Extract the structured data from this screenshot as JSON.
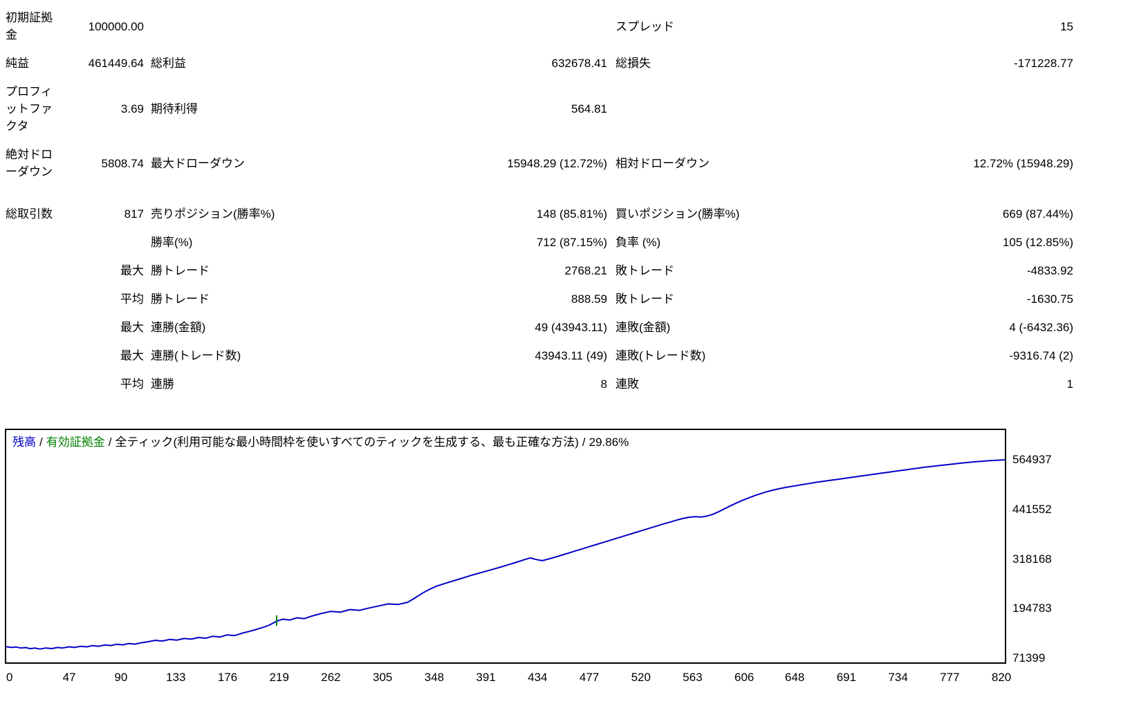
{
  "stats": {
    "rows": [
      {
        "c0": "初期証拠金",
        "c1": "100000.00",
        "c2": "",
        "c3": "",
        "c4": "スプレッド",
        "c5": "15"
      },
      {
        "c0": "純益",
        "c1": "461449.64",
        "c2": "総利益",
        "c3": "632678.41",
        "c4": "総損失",
        "c5": "-171228.77"
      },
      {
        "c0": "プロフィットファクタ",
        "c1": "3.69",
        "c2": "期待利得",
        "c3": "564.81",
        "c4": "",
        "c5": ""
      },
      {
        "c0": "絶対ドローダウン",
        "c1": "5808.74",
        "c2": "最大ドローダウン",
        "c3": "15948.29 (12.72%)",
        "c4": "相対ドローダウン",
        "c5": "12.72% (15948.29)"
      },
      {
        "c0": "総取引数",
        "c1": "817",
        "c2": "売りポジション(勝率%)",
        "c3": "148 (85.81%)",
        "c4": "買いポジション(勝率%)",
        "c5": "669 (87.44%)"
      },
      {
        "c0": "",
        "c1": "",
        "c2": "勝率(%)",
        "c3": "712 (87.15%)",
        "c4": "負率 (%)",
        "c5": "105 (12.85%)"
      },
      {
        "c0": "",
        "c1": "最大",
        "c2": "勝トレード",
        "c3": "2768.21",
        "c4": "敗トレード",
        "c5": "-4833.92"
      },
      {
        "c0": "",
        "c1": "平均",
        "c2": "勝トレード",
        "c3": "888.59",
        "c4": "敗トレード",
        "c5": "-1630.75"
      },
      {
        "c0": "",
        "c1": "最大",
        "c2": "連勝(金額)",
        "c3": "49 (43943.11)",
        "c4": "連敗(金額)",
        "c5": "4 (-6432.36)"
      },
      {
        "c0": "",
        "c1": "最大",
        "c2": "連勝(トレード数)",
        "c3": "43943.11 (49)",
        "c4": "連敗(トレード数)",
        "c5": "-9316.74 (2)"
      },
      {
        "c0": "",
        "c1": "平均",
        "c2": "連勝",
        "c3": "8",
        "c4": "連敗",
        "c5": "1"
      }
    ]
  },
  "chart": {
    "legend": {
      "balance_label": "残高",
      "separator": "/",
      "equity_label": "有効証拠金",
      "model_label": "全ティック(利用可能な最小時間枠を使いすべてのティックを生成する、最も正確な方法)",
      "quality_label": "29.86%"
    },
    "colors": {
      "balance": "#0000C8",
      "equity": "#008000",
      "border": "#000000"
    }
  },
  "chart_data": {
    "type": "line",
    "title": "",
    "xlabel": "",
    "ylabel": "",
    "grid": false,
    "legend_position": "top-left",
    "xlim": [
      0,
      831
    ],
    "ylim": [
      71399,
      564937
    ],
    "x_ticks": [
      0,
      47,
      90,
      133,
      176,
      219,
      262,
      305,
      348,
      391,
      434,
      477,
      520,
      563,
      606,
      648,
      691,
      734,
      777,
      820
    ],
    "y_ticks": [
      564937,
      441552,
      318168,
      194783,
      71399
    ],
    "series": [
      {
        "name": "残高",
        "color": "#0000C8",
        "points": [
          [
            0,
            100000
          ],
          [
            4,
            98200
          ],
          [
            8,
            99400
          ],
          [
            12,
            96800
          ],
          [
            16,
            98000
          ],
          [
            20,
            95300
          ],
          [
            24,
            96600
          ],
          [
            28,
            94191
          ],
          [
            33,
            96800
          ],
          [
            38,
            95400
          ],
          [
            43,
            98200
          ],
          [
            47,
            96900
          ],
          [
            52,
            99800
          ],
          [
            57,
            98300
          ],
          [
            62,
            101200
          ],
          [
            67,
            99800
          ],
          [
            72,
            102800
          ],
          [
            77,
            101200
          ],
          [
            82,
            104500
          ],
          [
            87,
            103000
          ],
          [
            92,
            106200
          ],
          [
            97,
            104800
          ],
          [
            102,
            108000
          ],
          [
            107,
            106500
          ],
          [
            112,
            109800
          ],
          [
            118,
            112500
          ],
          [
            124,
            116000
          ],
          [
            130,
            114300
          ],
          [
            136,
            118200
          ],
          [
            142,
            116500
          ],
          [
            148,
            120500
          ],
          [
            154,
            118800
          ],
          [
            160,
            123000
          ],
          [
            166,
            121300
          ],
          [
            172,
            126000
          ],
          [
            178,
            124300
          ],
          [
            184,
            129500
          ],
          [
            190,
            127800
          ],
          [
            196,
            133500
          ],
          [
            202,
            138000
          ],
          [
            208,
            143000
          ],
          [
            214,
            148500
          ],
          [
            219,
            154000
          ],
          [
            222,
            158500
          ],
          [
            225,
            163500
          ],
          [
            230,
            168500
          ],
          [
            236,
            166500
          ],
          [
            242,
            172000
          ],
          [
            248,
            170000
          ],
          [
            254,
            176000
          ],
          [
            262,
            182500
          ],
          [
            270,
            188000
          ],
          [
            278,
            186000
          ],
          [
            286,
            192500
          ],
          [
            294,
            190500
          ],
          [
            302,
            196500
          ],
          [
            310,
            201500
          ],
          [
            318,
            206500
          ],
          [
            326,
            205000
          ],
          [
            334,
            210500
          ],
          [
            340,
            221000
          ],
          [
            346,
            232500
          ],
          [
            352,
            242500
          ],
          [
            358,
            250500
          ],
          [
            364,
            256500
          ],
          [
            370,
            262000
          ],
          [
            376,
            267500
          ],
          [
            382,
            273000
          ],
          [
            388,
            278500
          ],
          [
            394,
            283500
          ],
          [
            400,
            288500
          ],
          [
            406,
            293500
          ],
          [
            412,
            298500
          ],
          [
            418,
            304000
          ],
          [
            424,
            309500
          ],
          [
            430,
            315500
          ],
          [
            436,
            321000
          ],
          [
            441,
            317000
          ],
          [
            446,
            314000
          ],
          [
            451,
            318000
          ],
          [
            457,
            323000
          ],
          [
            463,
            328500
          ],
          [
            469,
            334000
          ],
          [
            475,
            339500
          ],
          [
            481,
            345000
          ],
          [
            487,
            350500
          ],
          [
            493,
            356000
          ],
          [
            499,
            361500
          ],
          [
            505,
            367000
          ],
          [
            511,
            372500
          ],
          [
            517,
            378000
          ],
          [
            523,
            383500
          ],
          [
            529,
            389000
          ],
          [
            535,
            394500
          ],
          [
            541,
            400000
          ],
          [
            547,
            405500
          ],
          [
            553,
            410500
          ],
          [
            558,
            415000
          ],
          [
            563,
            419000
          ],
          [
            568,
            422000
          ],
          [
            573,
            423500
          ],
          [
            578,
            422500
          ],
          [
            583,
            425000
          ],
          [
            588,
            429500
          ],
          [
            593,
            436000
          ],
          [
            598,
            443500
          ],
          [
            603,
            451000
          ],
          [
            608,
            458000
          ],
          [
            613,
            464500
          ],
          [
            618,
            470500
          ],
          [
            623,
            476000
          ],
          [
            628,
            481000
          ],
          [
            633,
            485500
          ],
          [
            638,
            489500
          ],
          [
            644,
            493500
          ],
          [
            650,
            497000
          ],
          [
            656,
            500000
          ],
          [
            662,
            503000
          ],
          [
            668,
            506000
          ],
          [
            674,
            509000
          ],
          [
            680,
            511500
          ],
          [
            686,
            514000
          ],
          [
            692,
            516500
          ],
          [
            698,
            519000
          ],
          [
            704,
            521500
          ],
          [
            710,
            524000
          ],
          [
            716,
            526500
          ],
          [
            722,
            529000
          ],
          [
            728,
            531500
          ],
          [
            734,
            534000
          ],
          [
            740,
            536500
          ],
          [
            746,
            539000
          ],
          [
            752,
            541500
          ],
          [
            758,
            544000
          ],
          [
            764,
            546500
          ],
          [
            770,
            548500
          ],
          [
            776,
            550500
          ],
          [
            782,
            552500
          ],
          [
            788,
            554500
          ],
          [
            794,
            556500
          ],
          [
            800,
            558300
          ],
          [
            806,
            560000
          ],
          [
            812,
            561400
          ],
          [
            818,
            562700
          ],
          [
            824,
            563800
          ],
          [
            831,
            564937
          ]
        ]
      },
      {
        "name": "有効証拠金",
        "color": "#008000",
        "marks": [
          [
            225,
            152000,
            178000
          ]
        ]
      }
    ]
  }
}
